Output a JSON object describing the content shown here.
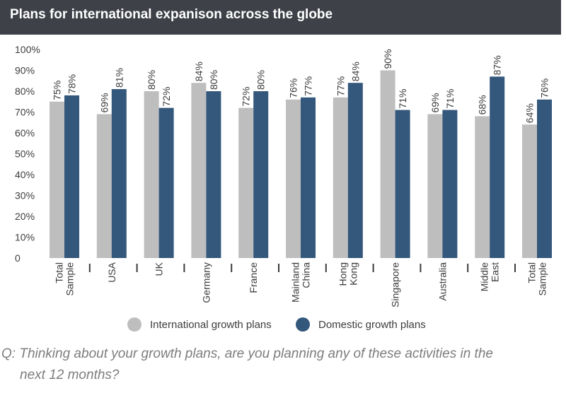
{
  "header": {
    "title": "Plans for international expanison across the globe"
  },
  "chart_data": {
    "type": "bar",
    "title": "Plans for international expanison across the globe",
    "ylim": [
      0,
      100
    ],
    "yticks": [
      "0",
      "10%",
      "20%",
      "30%",
      "40%",
      "50%",
      "60%",
      "70%",
      "80%",
      "90%",
      "100%"
    ],
    "categories": [
      [
        "Total",
        "Sample"
      ],
      [
        "USA"
      ],
      [
        "UK"
      ],
      [
        "Germany"
      ],
      [
        "France"
      ],
      [
        "Mainland",
        "China"
      ],
      [
        "Hong",
        "Kong"
      ],
      [
        "Singapore"
      ],
      [
        "Australia"
      ],
      [
        "Middle",
        "East"
      ],
      [
        "Total",
        "Sample"
      ]
    ],
    "series": [
      {
        "name": "International growth plans",
        "color": "#bebebe",
        "values": [
          75,
          69,
          80,
          84,
          72,
          76,
          77,
          90,
          69,
          68,
          64
        ],
        "labels": [
          "75%",
          "69%",
          "80%",
          "84%",
          "72%",
          "76%",
          "77%",
          "90%",
          "69%",
          "68%",
          "64%"
        ]
      },
      {
        "name": "Domestic growth plans",
        "color": "#34577c",
        "values": [
          78,
          81,
          72,
          80,
          80,
          77,
          84,
          71,
          71,
          87,
          76
        ],
        "labels": [
          "78%",
          "81%",
          "72%",
          "80%",
          "80%",
          "77%",
          "84%",
          "71%",
          "71%",
          "87%",
          "76%"
        ]
      }
    ],
    "legend": {
      "position": "bottom"
    },
    "grid": false
  },
  "footnote": {
    "line1": "Q: Thinking about your growth plans, are you planning any of these activities in the",
    "line2": "next 12 months?"
  }
}
